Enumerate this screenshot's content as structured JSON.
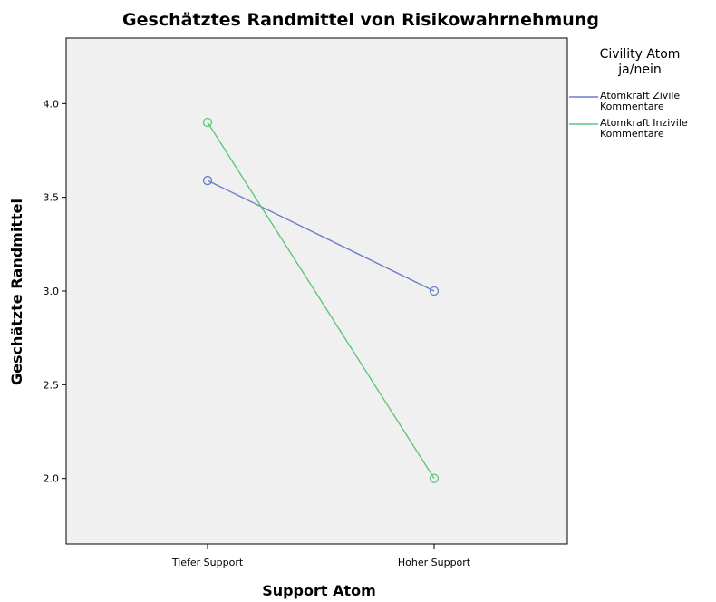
{
  "chart_data": {
    "type": "line",
    "title": "Geschätztes Randmittel von Risikowahrnehmung",
    "xlabel": "Support Atom",
    "ylabel": "Geschätzte Randmittel",
    "categories": [
      "Tiefer Support",
      "Hoher Support"
    ],
    "y_ticks": [
      "2.0",
      "2.5",
      "3.0",
      "3.5",
      "4.0"
    ],
    "ylim": [
      1.65,
      4.35
    ],
    "grid": false,
    "legend": {
      "title_lines": [
        "Civility Atom",
        "ja/nein"
      ],
      "placement": "right"
    },
    "series": [
      {
        "name": "Atomkraft Zivile Kommentare",
        "name_lines": [
          "Atomkraft Zivile",
          "Kommentare"
        ],
        "values": [
          3.59,
          3.0
        ],
        "color": "#6a7fc8"
      },
      {
        "name": "Atomkraft Inzivile Kommentare",
        "name_lines": [
          "Atomkraft Inzivile",
          "Kommentare"
        ],
        "values": [
          3.9,
          2.0
        ],
        "color": "#5ec77a"
      }
    ],
    "plot_background": "#f0f0f0"
  }
}
